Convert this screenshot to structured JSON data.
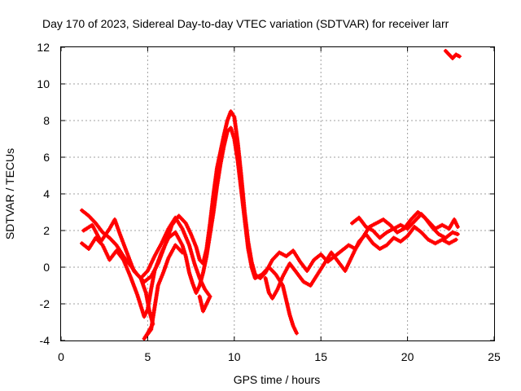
{
  "chart_data": {
    "type": "scatter",
    "title": "Day 170 of 2023, Sidereal Day-to-day VTEC variation (SDTVAR) for receiver larr",
    "xlabel": "GPS time / hours",
    "ylabel": "SDTVAR / TECUs",
    "xlim": [
      0,
      25
    ],
    "ylim": [
      -4,
      12
    ],
    "xticks": [
      "0",
      "5",
      "10",
      "15",
      "20",
      "25"
    ],
    "yticks": [
      "-4",
      "-2",
      "0",
      "2",
      "4",
      "6",
      "8",
      "10",
      "12"
    ],
    "grid": true,
    "marker_color": "#ff0000",
    "series": [
      {
        "points": [
          [
            1.2,
            3.1
          ],
          [
            1.6,
            2.8
          ],
          [
            2.0,
            2.4
          ],
          [
            2.4,
            1.9
          ],
          [
            2.8,
            1.6
          ],
          [
            3.2,
            1.2
          ],
          [
            3.6,
            0.6
          ],
          [
            4.0,
            0.1
          ],
          [
            4.4,
            -0.4
          ],
          [
            4.8,
            -0.8
          ],
          [
            5.2,
            -0.5
          ],
          [
            5.6,
            0.2
          ],
          [
            6.0,
            1.2
          ],
          [
            6.4,
            2.3
          ],
          [
            6.8,
            2.8
          ],
          [
            7.2,
            2.4
          ],
          [
            7.5,
            1.8
          ],
          [
            7.8,
            1.1
          ],
          [
            8.0,
            0.4
          ],
          [
            8.2,
            0.2
          ],
          [
            8.4,
            1.0
          ],
          [
            8.6,
            2.4
          ],
          [
            8.8,
            4.0
          ],
          [
            9.0,
            5.4
          ],
          [
            9.2,
            6.3
          ],
          [
            9.4,
            7.2
          ],
          [
            9.6,
            8.0
          ],
          [
            9.8,
            8.5
          ],
          [
            10.0,
            8.2
          ],
          [
            10.2,
            6.8
          ],
          [
            10.4,
            5.0
          ],
          [
            10.6,
            3.0
          ],
          [
            10.8,
            1.4
          ],
          [
            11.0,
            0.3
          ],
          [
            11.2,
            -0.4
          ],
          [
            11.5,
            -0.6
          ],
          [
            11.8,
            -0.3
          ],
          [
            12.2,
            0.4
          ],
          [
            12.6,
            0.8
          ],
          [
            13.0,
            0.6
          ],
          [
            13.4,
            0.9
          ],
          [
            13.8,
            0.3
          ],
          [
            14.2,
            -0.2
          ],
          [
            14.6,
            0.4
          ],
          [
            15.0,
            0.7
          ],
          [
            15.4,
            0.3
          ],
          [
            15.8,
            0.6
          ],
          [
            16.2,
            0.9
          ],
          [
            16.6,
            1.2
          ],
          [
            17.0,
            1.0
          ],
          [
            17.4,
            1.6
          ],
          [
            17.8,
            2.2
          ],
          [
            18.2,
            2.4
          ],
          [
            18.6,
            2.6
          ],
          [
            19.0,
            2.3
          ],
          [
            19.4,
            1.9
          ],
          [
            19.8,
            2.1
          ],
          [
            20.2,
            2.6
          ],
          [
            20.6,
            3.0
          ],
          [
            21.0,
            2.7
          ],
          [
            21.4,
            2.2
          ],
          [
            21.8,
            1.8
          ],
          [
            22.2,
            1.6
          ],
          [
            22.6,
            1.9
          ],
          [
            22.9,
            1.8
          ]
        ]
      },
      {
        "points": [
          [
            1.2,
            1.3
          ],
          [
            1.6,
            1.0
          ],
          [
            2.0,
            1.6
          ],
          [
            2.4,
            1.2
          ],
          [
            2.8,
            0.4
          ],
          [
            3.2,
            0.9
          ],
          [
            3.6,
            0.4
          ],
          [
            4.0,
            -0.5
          ],
          [
            4.4,
            -1.5
          ],
          [
            4.8,
            -2.7
          ],
          [
            5.0,
            -2.3
          ],
          [
            5.2,
            -1.2
          ],
          [
            5.4,
            -0.2
          ],
          [
            5.8,
            0.8
          ],
          [
            6.2,
            1.6
          ],
          [
            6.6,
            1.9
          ],
          [
            7.0,
            1.2
          ],
          [
            7.2,
            0.6
          ],
          [
            7.4,
            -0.3
          ],
          [
            7.6,
            -0.9
          ],
          [
            7.8,
            -1.4
          ],
          [
            8.0,
            -1.0
          ],
          [
            8.2,
            -0.3
          ],
          [
            8.4,
            0.6
          ],
          [
            8.6,
            1.8
          ],
          [
            8.8,
            3.0
          ],
          [
            9.0,
            4.4
          ],
          [
            9.2,
            5.6
          ],
          [
            9.4,
            6.6
          ],
          [
            9.6,
            7.4
          ],
          [
            9.8,
            7.6
          ],
          [
            10.0,
            7.0
          ],
          [
            10.2,
            5.8
          ],
          [
            10.4,
            4.2
          ],
          [
            10.6,
            2.6
          ],
          [
            10.8,
            1.0
          ],
          [
            11.0,
            0.0
          ],
          [
            11.2,
            -0.6
          ],
          [
            11.6,
            -0.4
          ],
          [
            12.0,
            0.0
          ],
          [
            12.4,
            -0.4
          ],
          [
            12.8,
            -1.0
          ],
          [
            13.0,
            -1.8
          ],
          [
            13.2,
            -2.6
          ],
          [
            13.4,
            -3.2
          ],
          [
            13.6,
            -3.6
          ]
        ]
      },
      {
        "points": [
          [
            1.3,
            2.0
          ],
          [
            1.8,
            2.3
          ],
          [
            2.3,
            1.4
          ],
          [
            2.8,
            2.1
          ],
          [
            3.1,
            2.6
          ],
          [
            3.4,
            1.8
          ],
          [
            3.8,
            0.8
          ],
          [
            4.2,
            -0.2
          ],
          [
            4.6,
            -0.6
          ],
          [
            5.0,
            -0.2
          ],
          [
            5.4,
            0.6
          ],
          [
            5.8,
            1.3
          ],
          [
            6.2,
            2.1
          ],
          [
            6.6,
            2.7
          ],
          [
            7.0,
            2.1
          ],
          [
            7.4,
            1.2
          ],
          [
            7.7,
            0.2
          ],
          [
            8.0,
            -0.6
          ],
          [
            8.3,
            -1.2
          ],
          [
            8.6,
            -1.6
          ],
          [
            8.2,
            -2.4
          ],
          [
            8.0,
            -1.6
          ]
        ]
      },
      {
        "points": [
          [
            4.6,
            -0.6
          ],
          [
            4.9,
            -1.4
          ],
          [
            5.1,
            -2.4
          ],
          [
            5.3,
            -3.1
          ],
          [
            5.0,
            -3.6
          ],
          [
            4.8,
            -3.9
          ],
          [
            5.2,
            -3.4
          ],
          [
            5.4,
            -2.2
          ],
          [
            5.6,
            -1.0
          ],
          [
            5.9,
            -0.3
          ],
          [
            6.2,
            0.5
          ],
          [
            6.6,
            1.2
          ],
          [
            7.0,
            0.8
          ]
        ]
      },
      {
        "points": [
          [
            11.8,
            -0.6
          ],
          [
            12.0,
            -1.4
          ],
          [
            12.2,
            -1.7
          ],
          [
            12.5,
            -1.2
          ],
          [
            12.8,
            -0.5
          ],
          [
            13.2,
            0.2
          ],
          [
            13.6,
            -0.3
          ],
          [
            14.0,
            -0.8
          ],
          [
            14.4,
            -1.0
          ],
          [
            14.8,
            -0.4
          ],
          [
            15.2,
            0.2
          ],
          [
            15.6,
            0.8
          ],
          [
            16.0,
            0.3
          ],
          [
            16.4,
            -0.2
          ],
          [
            16.8,
            0.6
          ],
          [
            17.2,
            1.4
          ],
          [
            17.6,
            1.8
          ],
          [
            18.0,
            1.3
          ],
          [
            18.4,
            1.0
          ],
          [
            18.8,
            1.2
          ],
          [
            19.2,
            1.6
          ],
          [
            19.6,
            1.4
          ],
          [
            20.0,
            1.7
          ],
          [
            20.4,
            2.2
          ],
          [
            20.8,
            1.9
          ],
          [
            21.2,
            1.5
          ],
          [
            21.6,
            1.3
          ],
          [
            22.0,
            1.5
          ],
          [
            22.4,
            1.3
          ],
          [
            22.8,
            1.5
          ]
        ]
      },
      {
        "points": [
          [
            16.8,
            2.4
          ],
          [
            17.2,
            2.7
          ],
          [
            17.6,
            2.2
          ],
          [
            18.0,
            2.0
          ],
          [
            18.4,
            1.6
          ],
          [
            18.8,
            1.9
          ],
          [
            19.2,
            2.1
          ],
          [
            19.6,
            2.3
          ],
          [
            20.0,
            2.1
          ],
          [
            20.4,
            2.5
          ],
          [
            20.8,
            2.9
          ],
          [
            21.2,
            2.5
          ],
          [
            21.6,
            2.1
          ],
          [
            22.0,
            2.3
          ],
          [
            22.4,
            2.1
          ],
          [
            22.7,
            2.6
          ],
          [
            22.9,
            2.2
          ]
        ]
      },
      {
        "points": [
          [
            22.2,
            11.8
          ],
          [
            22.4,
            11.6
          ],
          [
            22.6,
            11.4
          ],
          [
            22.8,
            11.6
          ],
          [
            23.0,
            11.5
          ]
        ]
      }
    ]
  }
}
